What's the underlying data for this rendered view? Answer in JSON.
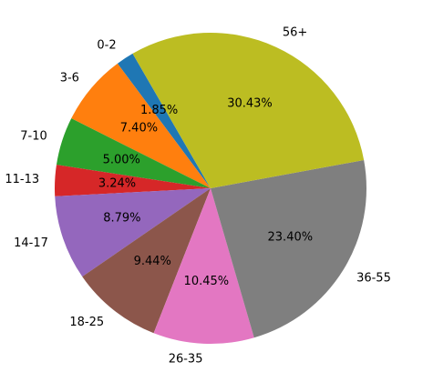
{
  "chart_data": {
    "type": "pie",
    "title": "",
    "categories": [
      "0-2",
      "3-6",
      "7-10",
      "11-13",
      "14-17",
      "18-25",
      "26-35",
      "36-55",
      "56+"
    ],
    "values": [
      1.85,
      7.4,
      5.0,
      3.24,
      8.79,
      9.44,
      10.45,
      23.4,
      30.43
    ],
    "percent_labels": [
      "1.85%",
      "7.40%",
      "5.00%",
      "3.24%",
      "8.79%",
      "9.44%",
      "10.45%",
      "23.40%",
      "30.43%"
    ],
    "colors": [
      "#1f77b4",
      "#ff7f0e",
      "#2ca02c",
      "#d62728",
      "#9467bd",
      "#8c564b",
      "#e377c2",
      "#7f7f7f",
      "#bcbd22"
    ],
    "start_angle_deg": 120,
    "direction": "counterclockwise",
    "legend": "none"
  }
}
